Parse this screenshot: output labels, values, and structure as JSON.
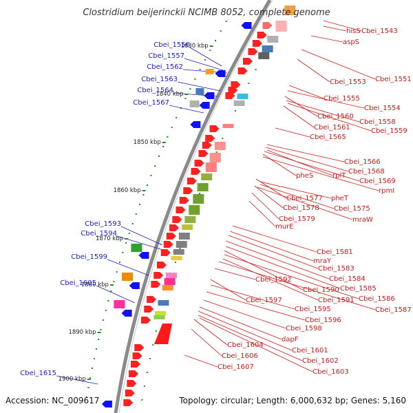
{
  "title": "Clostridium beijerinckii NCIMB 8052, complete genome",
  "footer": {
    "accession": "Accession: NC_009617",
    "summary": "Topology: circular; Length: 6,000,632 bp; Genes: 5,160"
  },
  "colors": {
    "backbone": "#8a8a8a",
    "forward_gene": "#ff0000",
    "reverse_gene": "#0000ff",
    "tick": "#228b22",
    "label_forward": "#d01818",
    "label_reverse": "#1a1ad0"
  },
  "kbp_ticks": [
    "1830 kbp",
    "1840 kbp",
    "1850 kbp",
    "1860 kbp",
    "1870 kbp",
    "1880 kbp",
    "1890 kbp",
    "1900 kbp"
  ],
  "genes_reverse_strand": [
    "Cbei_1556",
    "Cbei_1557",
    "Cbei_1562",
    "Cbei_1563",
    "Cbei_1564",
    "Cbei_1567",
    "Cbei_1593",
    "Cbei_1594",
    "Cbei_1599",
    "Cbei_1605",
    "Cbei_1615"
  ],
  "genes_forward_strand": [
    "hisS",
    "Cbei_1543",
    "aspS",
    "Cbei_1551",
    "Cbei_1553",
    "Cbei_1555",
    "Cbei_1554",
    "Cbei_1560",
    "Cbei_1558",
    "Cbei_1561",
    "Cbei_1559",
    "Cbei_1565",
    "Cbei_1566",
    "Cbei_1568",
    "pheS",
    "rplT",
    "Cbei_1569",
    "rpmI",
    "Cbei_1577",
    "pheT",
    "Cbei_1578",
    "Cbei_1575",
    "Cbei_1579",
    "mraW",
    "murE",
    "Cbei_1581",
    "mraY",
    "Cbei_1583",
    "Cbei_1584",
    "Cbei_1592",
    "Cbei_1585",
    "Cbei_1590",
    "Cbei_1586",
    "Cbei_1591",
    "Cbei_1597",
    "Cbei_1587",
    "Cbei_1595",
    "Cbei_1596",
    "Cbei_1598",
    "dapF",
    "Cbei_1604",
    "Cbei_1601",
    "Cbei_1606",
    "Cbei_1602",
    "Cbei_1607",
    "Cbei_1603"
  ]
}
